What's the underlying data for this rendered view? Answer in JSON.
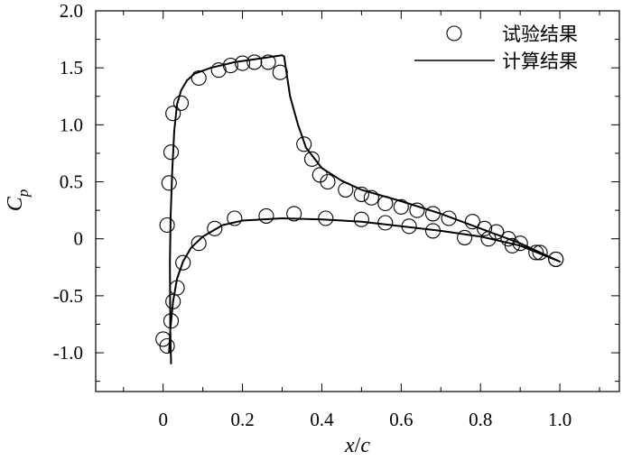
{
  "chart_data": {
    "type": "scatter",
    "xlabel": {
      "main": "x",
      "slash": "/",
      "sub": "c"
    },
    "ylabel": {
      "main": "C",
      "sub": "p"
    },
    "xlim": [
      -0.17,
      1.15
    ],
    "ylim": [
      -1.34,
      2.0
    ],
    "xticks": [
      0,
      0.2,
      0.4,
      0.6,
      0.8,
      1.0
    ],
    "xtick_labels": [
      "0",
      "0.2",
      "0.4",
      "0.6",
      "0.8",
      "1.0"
    ],
    "yticks": [
      2.0,
      1.5,
      1.0,
      0.5,
      0,
      -0.5,
      -1.0
    ],
    "ytick_labels": [
      "2.0",
      "1.5",
      "1.0",
      "0.5",
      "0",
      "-0.5",
      "-1.0"
    ],
    "legend_position": "top-right",
    "series": [
      {
        "name": "试验结果",
        "marker": "open-circle",
        "points": [
          [
            0.0,
            -0.88
          ],
          [
            0.01,
            -0.94
          ],
          [
            0.02,
            -0.72
          ],
          [
            0.025,
            -0.55
          ],
          [
            0.035,
            -0.43
          ],
          [
            0.05,
            -0.21
          ],
          [
            0.09,
            -0.04
          ],
          [
            0.13,
            0.09
          ],
          [
            0.18,
            0.18
          ],
          [
            0.26,
            0.2
          ],
          [
            0.33,
            0.22
          ],
          [
            0.41,
            0.18
          ],
          [
            0.5,
            0.17
          ],
          [
            0.56,
            0.14
          ],
          [
            0.62,
            0.11
          ],
          [
            0.68,
            0.07
          ],
          [
            0.76,
            0.01
          ],
          [
            0.82,
            0.0
          ],
          [
            0.88,
            -0.06
          ],
          [
            0.94,
            -0.12
          ],
          [
            0.99,
            -0.18
          ],
          [
            0.01,
            0.12
          ],
          [
            0.015,
            0.49
          ],
          [
            0.02,
            0.76
          ],
          [
            0.025,
            1.1
          ],
          [
            0.045,
            1.19
          ],
          [
            0.09,
            1.41
          ],
          [
            0.14,
            1.48
          ],
          [
            0.17,
            1.52
          ],
          [
            0.2,
            1.54
          ],
          [
            0.23,
            1.55
          ],
          [
            0.265,
            1.55
          ],
          [
            0.295,
            1.46
          ],
          [
            0.355,
            0.83
          ],
          [
            0.375,
            0.7
          ],
          [
            0.395,
            0.56
          ],
          [
            0.415,
            0.5
          ],
          [
            0.46,
            0.43
          ],
          [
            0.5,
            0.39
          ],
          [
            0.525,
            0.36
          ],
          [
            0.56,
            0.31
          ],
          [
            0.6,
            0.28
          ],
          [
            0.64,
            0.25
          ],
          [
            0.68,
            0.22
          ],
          [
            0.72,
            0.18
          ],
          [
            0.78,
            0.15
          ],
          [
            0.81,
            0.09
          ],
          [
            0.84,
            0.06
          ],
          [
            0.87,
            0.0
          ],
          [
            0.9,
            -0.04
          ],
          [
            0.95,
            -0.12
          ],
          [
            0.99,
            -0.18
          ]
        ]
      },
      {
        "name": "计算结果",
        "line": "solid",
        "points": [
          [
            0.02,
            -1.1
          ],
          [
            0.018,
            -0.8
          ],
          [
            0.017,
            -0.2
          ],
          [
            0.019,
            0.2
          ],
          [
            0.023,
            0.6
          ],
          [
            0.028,
            0.95
          ],
          [
            0.035,
            1.18
          ],
          [
            0.045,
            1.3
          ],
          [
            0.06,
            1.39
          ],
          [
            0.08,
            1.45
          ],
          [
            0.12,
            1.5
          ],
          [
            0.18,
            1.55
          ],
          [
            0.24,
            1.58
          ],
          [
            0.28,
            1.6
          ],
          [
            0.3,
            1.61
          ],
          [
            0.305,
            1.6
          ],
          [
            0.31,
            1.48
          ],
          [
            0.32,
            1.25
          ],
          [
            0.34,
            1.0
          ],
          [
            0.36,
            0.8
          ],
          [
            0.4,
            0.62
          ],
          [
            0.45,
            0.51
          ],
          [
            0.5,
            0.43
          ],
          [
            0.6,
            0.33
          ],
          [
            0.7,
            0.22
          ],
          [
            0.8,
            0.09
          ],
          [
            0.9,
            -0.04
          ],
          [
            1.0,
            -0.2
          ],
          [
            0.9,
            -0.06
          ],
          [
            0.8,
            0.02
          ],
          [
            0.7,
            0.07
          ],
          [
            0.6,
            0.11
          ],
          [
            0.5,
            0.15
          ],
          [
            0.4,
            0.17
          ],
          [
            0.3,
            0.18
          ],
          [
            0.2,
            0.16
          ],
          [
            0.15,
            0.12
          ],
          [
            0.1,
            0.02
          ],
          [
            0.07,
            -0.08
          ],
          [
            0.05,
            -0.2
          ],
          [
            0.035,
            -0.35
          ],
          [
            0.025,
            -0.55
          ],
          [
            0.018,
            -0.8
          ],
          [
            0.015,
            -1.0
          ]
        ]
      }
    ]
  }
}
